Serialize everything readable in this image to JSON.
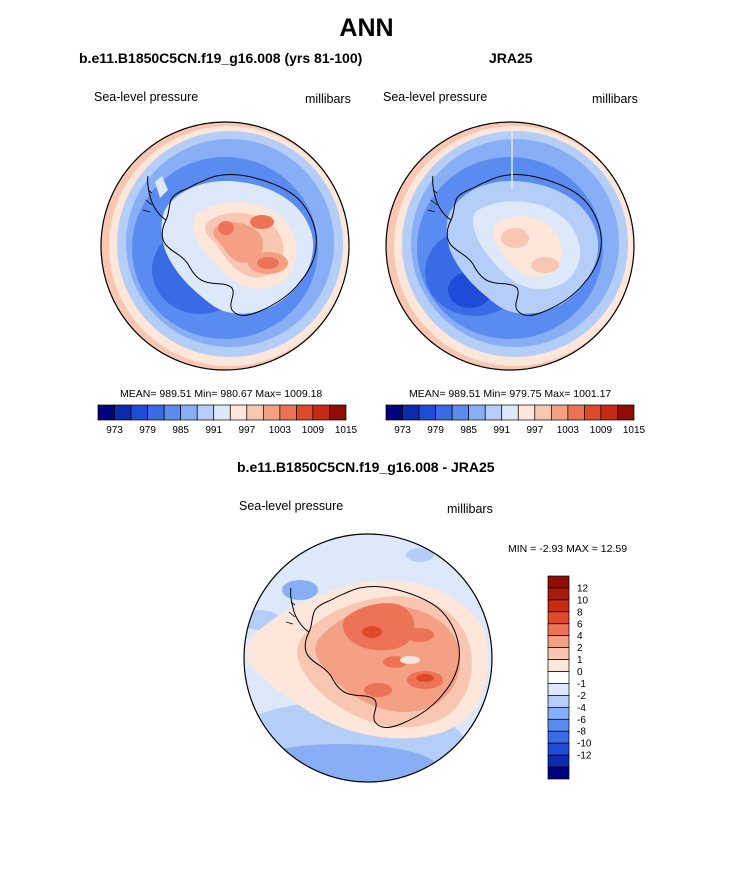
{
  "title": "ANN",
  "panels": [
    {
      "title": "b.e11.B1850C5CN.f19_g16.008 (yrs 81-100)",
      "left_label": "Sea-level pressure",
      "right_label": "millibars",
      "stats": "MEAN= 989.51  Min= 980.67  Max= 1009.18"
    },
    {
      "title": "JRA25",
      "left_label": "Sea-level pressure",
      "right_label": "millibars",
      "stats": "MEAN= 989.51  Min= 979.75  Max= 1001.17"
    },
    {
      "title": "b.e11.B1850C5CN.f19_g16.008 - JRA25",
      "left_label": "Sea-level pressure",
      "right_label": "millibars",
      "stats": "MIN =  -2.93 MAX =  12.59"
    }
  ],
  "colorbar_abs": {
    "colors": [
      "#00007f",
      "#0a2bb0",
      "#1f4bd6",
      "#3a6ae6",
      "#5a8bf0",
      "#88aef5",
      "#b5cef8",
      "#dde9fb",
      "#fde6da",
      "#f9c7b1",
      "#f3a084",
      "#ec7356",
      "#e04a2c",
      "#c42b12",
      "#8e0e04"
    ],
    "ticks": [
      "973",
      "979",
      "985",
      "991",
      "997",
      "1003",
      "1009",
      "1015"
    ]
  },
  "colorbar_diff": {
    "colors": [
      "#00007f",
      "#0a2bb0",
      "#1f4bd6",
      "#3a6ae6",
      "#5a8bf0",
      "#88aef5",
      "#b5cef8",
      "#dde9fb",
      "#ffffff",
      "#fde6da",
      "#f9c7b1",
      "#f3a084",
      "#ec7356",
      "#e04a2c",
      "#c42b12",
      "#a81b08",
      "#8e0e04"
    ],
    "ticks": [
      "12",
      "10",
      "8",
      "6",
      "4",
      "2",
      "1",
      "0",
      "-1",
      "-2",
      "-4",
      "-6",
      "-8",
      "-10",
      "-12"
    ]
  },
  "chart_data": [
    {
      "type": "heatmap",
      "title": "b.e11.B1850C5CN.f19_g16.008 (yrs 81-100)",
      "variable": "Sea-level pressure",
      "units": "millibars",
      "projection": "south polar stereographic",
      "mean": 989.51,
      "min": 980.67,
      "max": 1009.18,
      "levels": [
        973,
        976,
        979,
        982,
        985,
        988,
        991,
        994,
        997,
        1000,
        1003,
        1006,
        1009,
        1012,
        1015
      ]
    },
    {
      "type": "heatmap",
      "title": "JRA25",
      "variable": "Sea-level pressure",
      "units": "millibars",
      "projection": "south polar stereographic",
      "mean": 989.51,
      "min": 979.75,
      "max": 1001.17,
      "levels": [
        973,
        976,
        979,
        982,
        985,
        988,
        991,
        994,
        997,
        1000,
        1003,
        1006,
        1009,
        1012,
        1015
      ]
    },
    {
      "type": "heatmap",
      "title": "b.e11.B1850C5CN.f19_g16.008 - JRA25",
      "variable": "Sea-level pressure",
      "units": "millibars",
      "projection": "south polar stereographic",
      "min": -2.93,
      "max": 12.59,
      "levels": [
        -12,
        -10,
        -8,
        -6,
        -4,
        -2,
        -1,
        0,
        1,
        2,
        4,
        6,
        8,
        10,
        12
      ]
    }
  ]
}
